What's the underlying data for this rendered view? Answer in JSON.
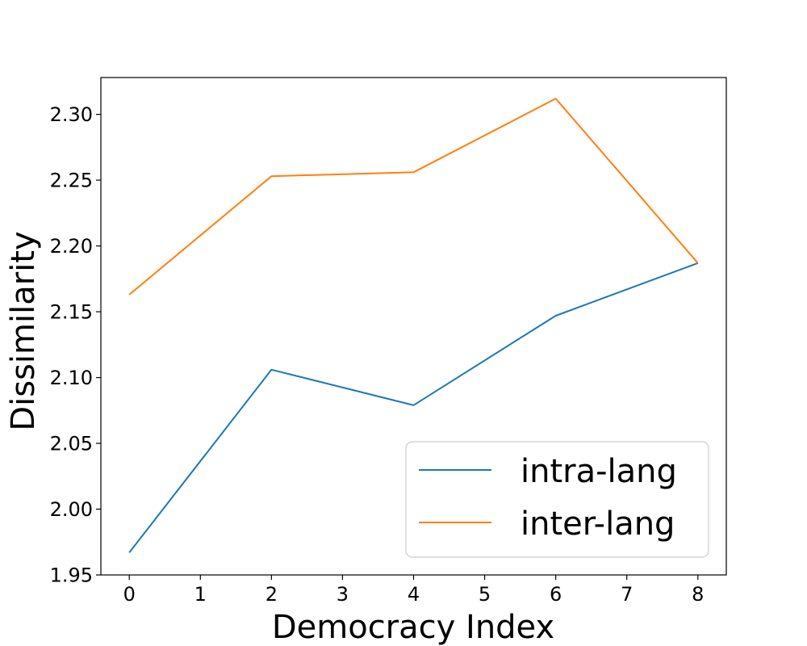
{
  "chart_data": {
    "type": "line",
    "xlabel": "Democracy Index",
    "ylabel": "Dissimilarity",
    "xlim": [
      -0.4,
      8.4
    ],
    "ylim": [
      1.95,
      2.328
    ],
    "xticks": [
      0,
      1,
      2,
      3,
      4,
      5,
      6,
      7,
      8
    ],
    "xtick_labels": [
      "0",
      "1",
      "2",
      "3",
      "4",
      "5",
      "6",
      "7",
      "8"
    ],
    "yticks": [
      1.95,
      2.0,
      2.05,
      2.1,
      2.15,
      2.2,
      2.25,
      2.3
    ],
    "ytick_labels": [
      "1.95",
      "2.00",
      "2.05",
      "2.10",
      "2.15",
      "2.20",
      "2.25",
      "2.30"
    ],
    "grid": false,
    "legend_position": "lower-right",
    "x": [
      0,
      2,
      4,
      6,
      8
    ],
    "series": [
      {
        "name": "intra-lang",
        "color": "#1f77b4",
        "values": [
          1.967,
          2.106,
          2.079,
          2.147,
          2.187
        ]
      },
      {
        "name": "inter-lang",
        "color": "#ff7f0e",
        "values": [
          2.163,
          2.253,
          2.256,
          2.312,
          2.187
        ]
      }
    ]
  }
}
